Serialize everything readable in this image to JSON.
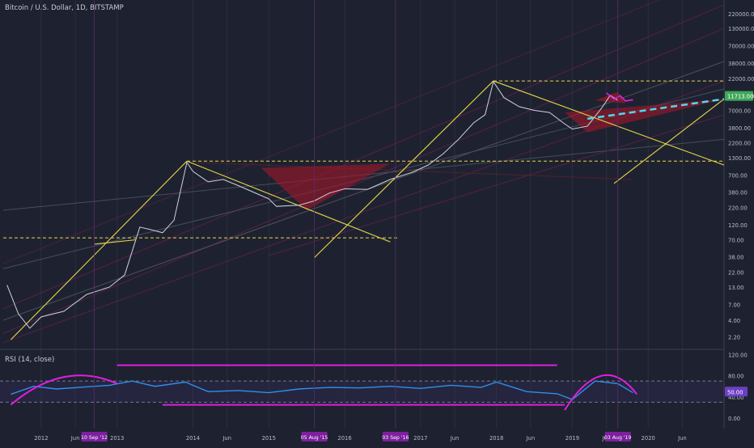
{
  "header": {
    "title": "Bitcoin / U.S. Dollar, 1D, BITSTAMP",
    "last_price": "11713.00"
  },
  "rsi": {
    "title": "RSI (14, close)",
    "last_value": "50.00"
  },
  "colors": {
    "background": "#1e2230",
    "price": "#cfd2dc",
    "fib_yellow": "#e8d84a",
    "zone_red": "#a0172a",
    "magenta": "#e21ee0",
    "cyan": "#4fd8f0",
    "rsi_line": "#2f8fe8",
    "price_label": "#3fa85a",
    "date_badge": "#7d1f9e"
  },
  "chart_data": [
    {
      "type": "line",
      "name": "price",
      "y_scale": "log",
      "ylim": [
        1.5,
        300000
      ],
      "y_ticks": [
        "220000.00",
        "130000.00",
        "70000.00",
        "38000.00",
        "22000.00",
        "11713.00",
        "7000.00",
        "3800.00",
        "2200.00",
        "1300.00",
        "700.00",
        "380.00",
        "220.00",
        "120.00",
        "70.00",
        "38.00",
        "22.00",
        "13.00",
        "7.00",
        "4.00",
        "2.20"
      ],
      "x_ticks": [
        "2012",
        "Jun",
        "2013",
        "2014",
        "Jun",
        "2015",
        "2016",
        "2017",
        "Jun",
        "2018",
        "Jun",
        "2019",
        "Jun",
        "2020",
        "Jun"
      ],
      "x_dates": [
        2012.0,
        2012.45,
        2013.0,
        2014.0,
        2014.45,
        2015.0,
        2016.0,
        2017.0,
        2017.45,
        2018.0,
        2018.45,
        2019.0,
        2019.45,
        2020.0,
        2020.45
      ],
      "series": [
        {
          "x": [
            2011.55,
            2011.7,
            2011.85,
            2012.0,
            2012.3,
            2012.6,
            2012.9,
            2013.1,
            2013.3,
            2013.45,
            2013.6,
            2013.75,
            2013.92,
            2014.0,
            2014.2,
            2014.4,
            2014.6,
            2014.8,
            2015.0,
            2015.1,
            2015.4,
            2015.6,
            2015.8,
            2016.0,
            2016.3,
            2016.6,
            2016.9,
            2017.1,
            2017.3,
            2017.5,
            2017.7,
            2017.85,
            2017.96,
            2018.1,
            2018.3,
            2018.5,
            2018.7,
            2018.88,
            2019.0,
            2019.2,
            2019.4,
            2019.5,
            2019.6
          ],
          "y": [
            14,
            5,
            3,
            4.5,
            5.5,
            10,
            13,
            20,
            110,
            100,
            90,
            140,
            1100,
            800,
            550,
            600,
            480,
            380,
            300,
            230,
            240,
            280,
            370,
            430,
            420,
            600,
            780,
            1000,
            1500,
            2500,
            4500,
            6000,
            19500,
            11000,
            8000,
            7000,
            6500,
            4500,
            3600,
            4000,
            8000,
            12000,
            10000
          ]
        },
        {
          "x": [
            2019.45,
            2019.55,
            2019.63,
            2019.7,
            2019.8
          ],
          "y": [
            13000,
            10500,
            11800,
            9800,
            10200
          ]
        }
      ],
      "date_badges": [
        "10 Sep '12",
        "05 Aug '15",
        "03 Sep '16",
        "03 Aug '19"
      ]
    },
    {
      "type": "line",
      "name": "RSI",
      "ylim": [
        -20,
        130
      ],
      "y_ticks": [
        "120.00",
        "80.00",
        "50.00",
        "40.00",
        "0.00"
      ],
      "levels": [
        70,
        30
      ],
      "series": [
        {
          "x": [
            2011.6,
            2011.9,
            2012.2,
            2012.5,
            2012.9,
            2013.2,
            2013.5,
            2013.9,
            2014.2,
            2014.6,
            2015.0,
            2015.4,
            2015.8,
            2016.2,
            2016.6,
            2017.0,
            2017.4,
            2017.8,
            2018.0,
            2018.4,
            2018.8,
            2019.0,
            2019.3,
            2019.6,
            2019.8
          ],
          "y": [
            45,
            60,
            55,
            58,
            62,
            70,
            60,
            68,
            50,
            52,
            48,
            55,
            58,
            57,
            60,
            56,
            62,
            58,
            68,
            50,
            46,
            35,
            70,
            65,
            48
          ]
        }
      ]
    }
  ]
}
